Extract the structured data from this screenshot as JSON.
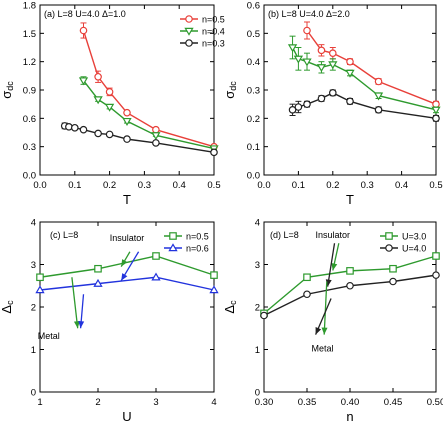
{
  "colors": {
    "red": "#e8403a",
    "green": "#2e9a2e",
    "black": "#222222",
    "blue": "#2233dd"
  },
  "chart_data": [
    {
      "id": "a",
      "type": "line",
      "panel_label": "(a) L=8 U=4.0 Δ=1.0",
      "xlabel": "T",
      "ylabel_main": "σ",
      "ylabel_sub": "dc",
      "xlim": [
        0.0,
        0.5
      ],
      "ylim": [
        0.0,
        1.8
      ],
      "xticks": [
        0.0,
        0.1,
        0.2,
        0.3,
        0.4,
        0.5
      ],
      "xtick_labels": [
        "0.0",
        "0.1",
        "0.2",
        "0.3",
        "0.4",
        "0.5"
      ],
      "yticks": [
        0.0,
        0.3,
        0.6,
        0.9,
        1.2,
        1.5,
        1.8
      ],
      "ytick_labels": [
        "0.0",
        "0.3",
        "0.6",
        "0.9",
        "1.2",
        "1.5",
        "1.8"
      ],
      "legend_position": "top-right",
      "series": [
        {
          "name": "n=0.5",
          "color": "#e8403a",
          "marker": "circle",
          "x": [
            0.125,
            0.167,
            0.2,
            0.25,
            0.333,
            0.5
          ],
          "y": [
            1.53,
            1.04,
            0.88,
            0.66,
            0.48,
            0.3
          ],
          "err": [
            0.08,
            0.06,
            0.04,
            0.02,
            0.01,
            0.01
          ]
        },
        {
          "name": "n=0.4",
          "color": "#2e9a2e",
          "marker": "triangle-down",
          "x": [
            0.125,
            0.167,
            0.2,
            0.25,
            0.333,
            0.5
          ],
          "y": [
            1.0,
            0.8,
            0.72,
            0.57,
            0.42,
            0.28
          ],
          "err": [
            0.04,
            0.02,
            0.02,
            0.02,
            0.01,
            0.01
          ]
        },
        {
          "name": "n=0.3",
          "color": "#222222",
          "marker": "circle",
          "x": [
            0.071,
            0.083,
            0.1,
            0.125,
            0.167,
            0.2,
            0.25,
            0.333,
            0.5
          ],
          "y": [
            0.52,
            0.51,
            0.5,
            0.48,
            0.44,
            0.43,
            0.38,
            0.34,
            0.24
          ],
          "err": [
            0.03,
            0.02,
            0.02,
            0.01,
            0.01,
            0.01,
            0.01,
            0.01,
            0.02
          ]
        }
      ]
    },
    {
      "id": "b",
      "type": "line",
      "panel_label": "(b) L=8 U=4.0 Δ=2.0",
      "xlabel": "T",
      "ylabel_main": "σ",
      "ylabel_sub": "dc",
      "xlim": [
        0.0,
        0.5
      ],
      "ylim": [
        0.0,
        0.6
      ],
      "xticks": [
        0.0,
        0.1,
        0.2,
        0.3,
        0.4,
        0.5
      ],
      "xtick_labels": [
        "0.0",
        "0.1",
        "0.2",
        "0.3",
        "0.4",
        "0.5"
      ],
      "yticks": [
        0.0,
        0.1,
        0.2,
        0.3,
        0.4,
        0.5,
        0.6
      ],
      "ytick_labels": [
        "0.0",
        "0.1",
        "0.2",
        "0.3",
        "0.4",
        "0.5",
        "0.6"
      ],
      "legend_position": "top-right",
      "series": [
        {
          "name": "n=0.5",
          "color": "#e8403a",
          "marker": "circle",
          "x": [
            0.125,
            0.167,
            0.2,
            0.25,
            0.333,
            0.5
          ],
          "y": [
            0.51,
            0.44,
            0.43,
            0.4,
            0.33,
            0.25
          ],
          "err": [
            0.03,
            0.02,
            0.02,
            0.01,
            0.01,
            0.01
          ]
        },
        {
          "name": "n=0.4",
          "color": "#2e9a2e",
          "marker": "triangle-down",
          "x": [
            0.083,
            0.1,
            0.125,
            0.167,
            0.2,
            0.25,
            0.333,
            0.5
          ],
          "y": [
            0.45,
            0.41,
            0.4,
            0.38,
            0.39,
            0.36,
            0.28,
            0.23
          ],
          "err": [
            0.04,
            0.04,
            0.03,
            0.02,
            0.02,
            0.01,
            0.01,
            0.01
          ]
        },
        {
          "name": "n=0.3",
          "color": "#222222",
          "marker": "circle",
          "x": [
            0.083,
            0.1,
            0.125,
            0.167,
            0.2,
            0.25,
            0.333,
            0.5
          ],
          "y": [
            0.23,
            0.24,
            0.25,
            0.27,
            0.29,
            0.26,
            0.23,
            0.2
          ],
          "err": [
            0.02,
            0.02,
            0.01,
            0.01,
            0.01,
            0.01,
            0.01,
            0.01
          ]
        }
      ]
    },
    {
      "id": "c",
      "type": "line",
      "panel_label": "(c) L=8",
      "xlabel": "U",
      "ylabel_main": "Δ",
      "ylabel_sub": "c",
      "xlim": [
        1,
        4
      ],
      "ylim": [
        0,
        4
      ],
      "xticks": [
        1,
        2,
        3,
        4
      ],
      "xtick_labels": [
        "1",
        "2",
        "3",
        "4"
      ],
      "yticks": [
        0,
        1,
        2,
        3,
        4
      ],
      "ytick_labels": [
        "0",
        "1",
        "2",
        "3",
        "4"
      ],
      "legend_position": "top-right",
      "series": [
        {
          "name": "n=0.5",
          "color": "#2e9a2e",
          "marker": "square",
          "x": [
            1,
            2,
            3,
            4
          ],
          "y": [
            2.7,
            2.9,
            3.2,
            2.75
          ]
        },
        {
          "name": "n=0.6",
          "color": "#2233dd",
          "marker": "triangle-up",
          "x": [
            1,
            2,
            3,
            4
          ],
          "y": [
            2.4,
            2.55,
            2.7,
            2.4
          ]
        }
      ],
      "annotations": [
        {
          "text": "Insulator",
          "pos": [
            2.5,
            3.55
          ]
        },
        {
          "text": "Metal",
          "pos": [
            1.15,
            1.25
          ]
        }
      ],
      "arrows": [
        {
          "from": [
            2.7,
            3.3
          ],
          "to": [
            2.4,
            2.62
          ],
          "color": "#2233dd"
        },
        {
          "from": [
            2.55,
            3.3
          ],
          "to": [
            2.4,
            2.95
          ],
          "color": "#2e9a2e"
        },
        {
          "from": [
            1.55,
            2.7
          ],
          "to": [
            1.65,
            1.5
          ],
          "color": "#2e9a2e"
        },
        {
          "from": [
            1.75,
            2.3
          ],
          "to": [
            1.7,
            1.5
          ],
          "color": "#2233dd"
        }
      ]
    },
    {
      "id": "d",
      "type": "line",
      "panel_label": "(d) L=8",
      "xlabel": "n",
      "ylabel_main": "Δ",
      "ylabel_sub": "c",
      "xlim": [
        0.3,
        0.5
      ],
      "ylim": [
        0,
        4
      ],
      "xticks": [
        0.3,
        0.35,
        0.4,
        0.45,
        0.5
      ],
      "xtick_labels": [
        "0.30",
        "0.35",
        "0.40",
        "0.45",
        "0.50"
      ],
      "yticks": [
        0,
        1,
        2,
        3,
        4
      ],
      "ytick_labels": [
        "0",
        "1",
        "2",
        "3",
        "4"
      ],
      "legend_position": "top-right",
      "series": [
        {
          "name": "U=3.0",
          "color": "#2e9a2e",
          "marker": "square",
          "x": [
            0.3,
            0.35,
            0.4,
            0.45,
            0.5
          ],
          "y": [
            1.85,
            2.7,
            2.85,
            2.9,
            3.2
          ]
        },
        {
          "name": "U=4.0",
          "color": "#222222",
          "marker": "circle",
          "x": [
            0.3,
            0.35,
            0.4,
            0.45,
            0.5
          ],
          "y": [
            1.8,
            2.3,
            2.5,
            2.6,
            2.75
          ]
        }
      ],
      "annotations": [
        {
          "text": "Insulator",
          "pos": [
            0.38,
            3.62
          ]
        },
        {
          "text": "Metal",
          "pos": [
            0.368,
            0.95
          ]
        }
      ],
      "arrows": [
        {
          "from": [
            0.387,
            3.5
          ],
          "to": [
            0.38,
            2.86
          ],
          "color": "#2e9a2e"
        },
        {
          "from": [
            0.382,
            3.5
          ],
          "to": [
            0.374,
            2.48
          ],
          "color": "#222222"
        },
        {
          "from": [
            0.373,
            2.6
          ],
          "to": [
            0.37,
            1.35
          ],
          "color": "#2e9a2e"
        },
        {
          "from": [
            0.378,
            2.2
          ],
          "to": [
            0.36,
            1.35
          ],
          "color": "#222222"
        }
      ]
    }
  ]
}
